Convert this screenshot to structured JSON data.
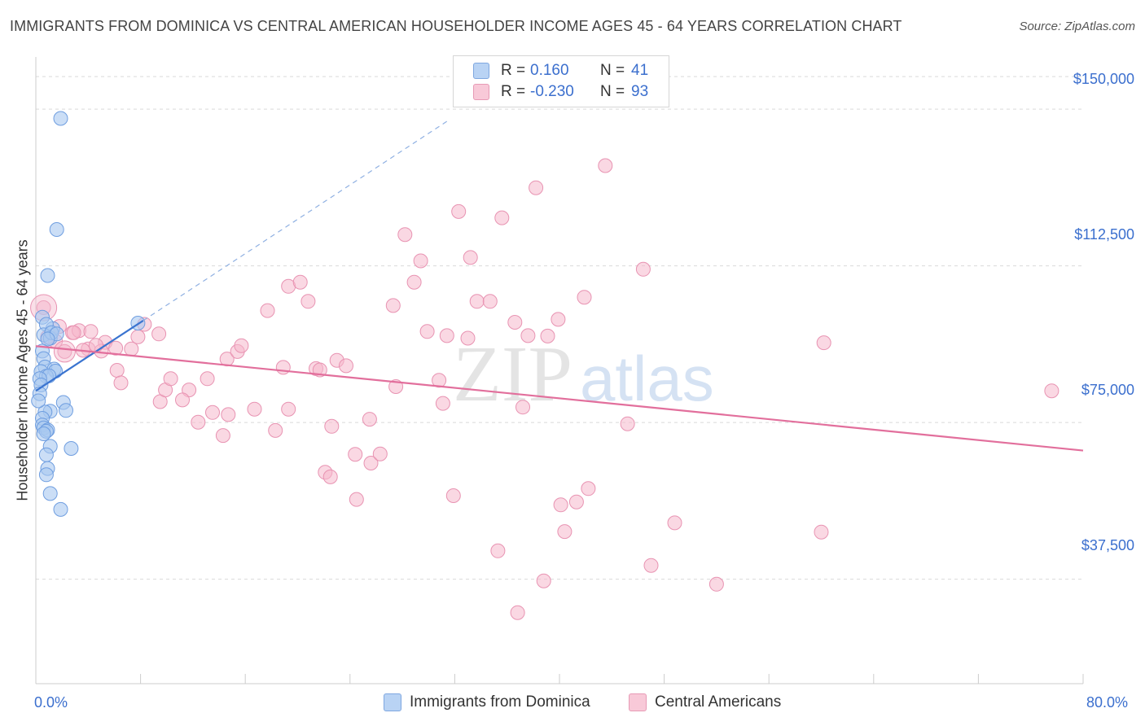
{
  "title": "IMMIGRANTS FROM DOMINICA VS CENTRAL AMERICAN HOUSEHOLDER INCOME AGES 45 - 64 YEARS CORRELATION CHART",
  "source": "Source: ZipAtlas.com",
  "watermark": {
    "zip": "ZIP",
    "atlas": "atlas"
  },
  "legend": {
    "rows": [
      {
        "r_label": "R =",
        "r_value": "0.160",
        "n_label": "N =",
        "n_value": "41"
      },
      {
        "r_label": "R =",
        "r_value": "-0.230",
        "n_label": "N =",
        "n_value": "93"
      }
    ]
  },
  "bottom_legend": [
    "Immigrants from Dominica",
    "Central Americans"
  ],
  "colors": {
    "blue": "#3a74d0",
    "blue_fill": "#a8c8f0",
    "pink": "#e26f9c",
    "pink_fill": "#f5b8cc",
    "grid": "#d9d9d9",
    "axis_label": "#3b6fce"
  },
  "chart_data": {
    "type": "scatter",
    "title": "IMMIGRANTS FROM DOMINICA VS CENTRAL AMERICAN HOUSEHOLDER INCOME AGES 45 - 64 YEARS CORRELATION CHART",
    "xlabel": "",
    "ylabel": "Householder Income Ages 45 - 64 years",
    "xlim": [
      0,
      80
    ],
    "ylim": [
      12500,
      162500
    ],
    "x_tick_labels": [
      "0.0%",
      "80.0%"
    ],
    "y_ticks": [
      37500,
      75000,
      112500,
      150000
    ],
    "y_tick_labels": [
      "$37,500",
      "$75,000",
      "$112,500",
      "$150,000"
    ],
    "grid": true,
    "series": [
      {
        "name": "Immigrants from Dominica",
        "color": "#3a74d0",
        "points": [
          [
            1.9,
            147800
          ],
          [
            1.6,
            121200
          ],
          [
            0.9,
            110200
          ],
          [
            0.5,
            100200
          ],
          [
            1.3,
            97500
          ],
          [
            0.8,
            98500
          ],
          [
            0.6,
            96000
          ],
          [
            1.1,
            95200
          ],
          [
            1.2,
            96500
          ],
          [
            1.6,
            96200
          ],
          [
            0.9,
            95000
          ],
          [
            0.5,
            92100
          ],
          [
            0.6,
            90300
          ],
          [
            0.7,
            88300
          ],
          [
            1.4,
            87800
          ],
          [
            1.5,
            87300
          ],
          [
            0.4,
            87200
          ],
          [
            0.8,
            86100
          ],
          [
            1.0,
            86200
          ],
          [
            0.3,
            85500
          ],
          [
            0.4,
            84000
          ],
          [
            0.3,
            81900
          ],
          [
            2.1,
            79800
          ],
          [
            2.3,
            77900
          ],
          [
            1.1,
            77700
          ],
          [
            0.7,
            77500
          ],
          [
            0.5,
            76000
          ],
          [
            0.5,
            74400
          ],
          [
            0.6,
            73700
          ],
          [
            0.9,
            73200
          ],
          [
            0.8,
            72900
          ],
          [
            0.6,
            72300
          ],
          [
            1.1,
            69300
          ],
          [
            2.7,
            68800
          ],
          [
            0.8,
            67300
          ],
          [
            0.9,
            64000
          ],
          [
            0.8,
            62500
          ],
          [
            1.1,
            58000
          ],
          [
            1.9,
            54200
          ],
          [
            7.8,
            98800
          ],
          [
            0.2,
            80200
          ]
        ]
      },
      {
        "name": "Central Americans",
        "color": "#e26f9c",
        "points": [
          [
            0.6,
            102500
          ],
          [
            2.2,
            92000
          ],
          [
            1.8,
            98000
          ],
          [
            2.8,
            96500
          ],
          [
            3.3,
            97000
          ],
          [
            4.2,
            96800
          ],
          [
            4.0,
            92600
          ],
          [
            5.3,
            94200
          ],
          [
            5.0,
            92100
          ],
          [
            6.1,
            92800
          ],
          [
            6.2,
            87500
          ],
          [
            7.3,
            92600
          ],
          [
            7.8,
            95500
          ],
          [
            8.3,
            98500
          ],
          [
            6.5,
            84500
          ],
          [
            9.4,
            96200
          ],
          [
            9.5,
            80000
          ],
          [
            9.9,
            82800
          ],
          [
            10.3,
            85500
          ],
          [
            11.7,
            82800
          ],
          [
            11.2,
            80400
          ],
          [
            12.4,
            75100
          ],
          [
            13.1,
            85500
          ],
          [
            13.5,
            77400
          ],
          [
            14.3,
            71900
          ],
          [
            14.6,
            90200
          ],
          [
            14.7,
            76900
          ],
          [
            15.4,
            92000
          ],
          [
            15.7,
            93400
          ],
          [
            16.7,
            78200
          ],
          [
            17.7,
            101800
          ],
          [
            18.3,
            73100
          ],
          [
            18.9,
            88200
          ],
          [
            19.3,
            107600
          ],
          [
            19.3,
            78200
          ],
          [
            20.2,
            108600
          ],
          [
            20.8,
            104000
          ],
          [
            21.4,
            87900
          ],
          [
            21.7,
            87600
          ],
          [
            22.6,
            74100
          ],
          [
            22.1,
            63100
          ],
          [
            22.5,
            62000
          ],
          [
            23.0,
            89900
          ],
          [
            23.7,
            88600
          ],
          [
            24.4,
            67400
          ],
          [
            24.5,
            56600
          ],
          [
            25.5,
            75800
          ],
          [
            25.6,
            65300
          ],
          [
            26.3,
            67500
          ],
          [
            27.3,
            103000
          ],
          [
            27.5,
            83600
          ],
          [
            28.2,
            120000
          ],
          [
            28.9,
            108600
          ],
          [
            29.4,
            113700
          ],
          [
            29.9,
            96800
          ],
          [
            30.8,
            85100
          ],
          [
            31.1,
            79600
          ],
          [
            31.4,
            95800
          ],
          [
            31.9,
            57500
          ],
          [
            32.3,
            125500
          ],
          [
            33.0,
            95200
          ],
          [
            33.2,
            114500
          ],
          [
            33.7,
            104000
          ],
          [
            34.7,
            104000
          ],
          [
            35.3,
            44300
          ],
          [
            35.6,
            124000
          ],
          [
            36.6,
            99000
          ],
          [
            36.8,
            29500
          ],
          [
            37.2,
            78700
          ],
          [
            37.6,
            95800
          ],
          [
            38.2,
            131200
          ],
          [
            38.8,
            37100
          ],
          [
            39.1,
            95700
          ],
          [
            39.9,
            99700
          ],
          [
            40.1,
            55300
          ],
          [
            40.4,
            48900
          ],
          [
            41.3,
            56000
          ],
          [
            41.9,
            105000
          ],
          [
            42.2,
            59200
          ],
          [
            43.5,
            136500
          ],
          [
            45.2,
            74700
          ],
          [
            46.4,
            111700
          ],
          [
            47.0,
            40800
          ],
          [
            48.8,
            51000
          ],
          [
            52.0,
            36300
          ],
          [
            60.0,
            48800
          ],
          [
            60.2,
            94100
          ],
          [
            77.6,
            82600
          ],
          [
            2.9,
            96500
          ],
          [
            4.6,
            93500
          ],
          [
            1.5,
            94500
          ],
          [
            3.6,
            92300
          ],
          [
            0.9,
            95500
          ]
        ]
      }
    ],
    "trendlines": [
      {
        "series": "Immigrants from Dominica",
        "x": [
          0,
          8.2
        ],
        "y": [
          82600,
          99400
        ],
        "extended_dashed_to": [
          31.6,
          147500
        ]
      },
      {
        "series": "Central Americans",
        "x": [
          0,
          80
        ],
        "y": [
          93300,
          68300
        ]
      }
    ]
  }
}
